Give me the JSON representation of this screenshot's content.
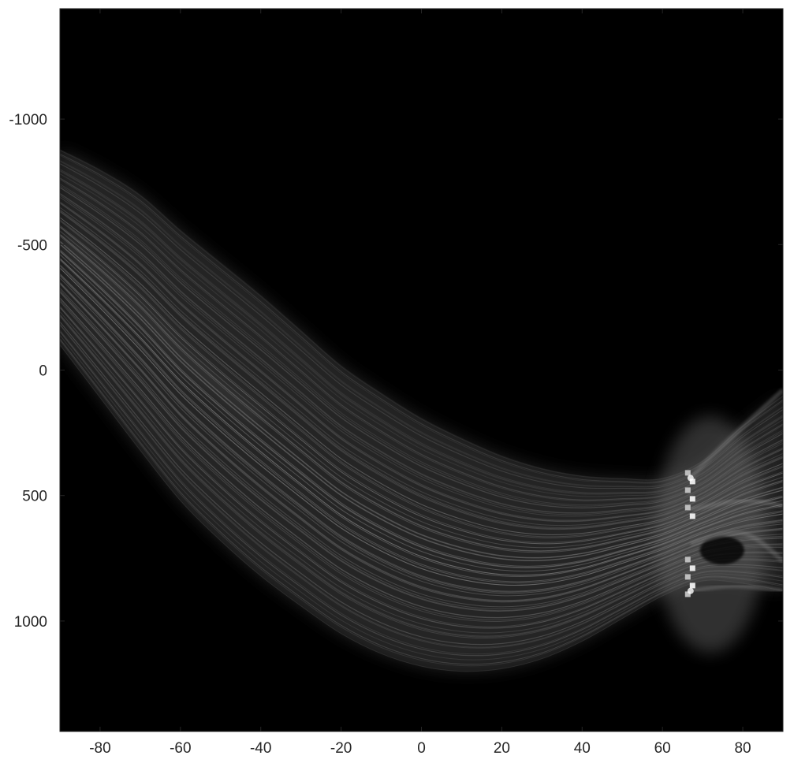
{
  "chart_data": {
    "type": "heatmap",
    "title": "",
    "xlabel": "",
    "ylabel": "",
    "xlim": [
      -90,
      90
    ],
    "ylim": [
      -1440,
      1440
    ],
    "y_reversed": true,
    "grid": false,
    "colormap": "gray",
    "background_color": "#000000",
    "x_ticks": [
      -80,
      -60,
      -40,
      -20,
      0,
      20,
      40,
      60,
      80
    ],
    "x_tick_labels": [
      "-80",
      "-60",
      "-40",
      "-20",
      "0",
      "20",
      "40",
      "60",
      "80"
    ],
    "y_ticks": [
      -1000,
      -500,
      0,
      500,
      1000
    ],
    "y_tick_labels": [
      "-1000",
      "-500",
      "0",
      "500",
      "1000"
    ],
    "band": {
      "theta": [
        -90,
        -80,
        -70,
        -60,
        -50,
        -40,
        -30,
        -20,
        -10,
        0,
        10,
        20,
        30,
        40,
        50,
        60,
        70,
        80,
        90
      ],
      "rho_top": [
        -880,
        -800,
        -700,
        -560,
        -430,
        -300,
        -160,
        -20,
        90,
        190,
        270,
        340,
        390,
        420,
        430,
        430,
        360,
        220,
        100
      ],
      "rho_bottom": [
        -100,
        110,
        320,
        520,
        680,
        820,
        940,
        1050,
        1130,
        1180,
        1200,
        1190,
        1150,
        1080,
        990,
        900,
        840,
        850,
        880
      ]
    },
    "peaks": [
      {
        "theta": 67,
        "rho": 430,
        "intensity": 1.0
      },
      {
        "theta": 67,
        "rho": 880,
        "intensity": 1.0
      }
    ]
  }
}
